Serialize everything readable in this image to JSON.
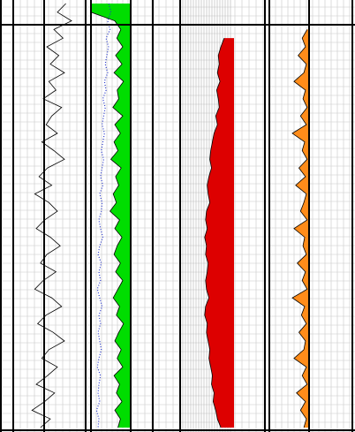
{
  "chart_data": {
    "type": "well-log",
    "tracks": [
      {
        "xlim": [
          0,
          100
        ],
        "series": [
          {
            "color": "#000000",
            "values": [
              72,
              60,
              80,
              55,
              68,
              45,
              62,
              50,
              70,
              48,
              58,
              40,
              66,
              52,
              44,
              60,
              38,
              55,
              70,
              46,
              34,
              52,
              28,
              48,
              60,
              42,
              30,
              50,
              64,
              45,
              36,
              58,
              40,
              28,
              52,
              66,
              44,
              32,
              54,
              70,
              48,
              38,
              60,
              46,
              30,
              56,
              42,
              24,
              50,
              36
            ]
          }
        ]
      },
      {
        "xlim": [
          0,
          100
        ],
        "series": [
          {
            "color": "#00dd00",
            "fill": "right",
            "values": [
              0,
              0,
              60,
              75,
              65,
              80,
              62,
              78,
              58,
              82,
              66,
              70,
              55,
              80,
              60,
              74,
              58,
              68,
              50,
              76,
              62,
              70,
              56,
              64,
              48,
              72,
              60,
              78,
              66,
              58,
              74,
              62,
              80,
              68,
              56,
              72,
              64,
              82,
              70,
              60,
              76,
              66,
              80,
              58,
              72,
              64,
              78,
              60,
              74,
              68
            ]
          },
          {
            "color": "#2233cc",
            "dotted": true,
            "values": [
              45,
              50,
              42,
              48,
              38,
              44,
              40,
              36,
              42,
              34,
              38,
              30,
              36,
              32,
              28,
              34,
              30,
              26,
              32,
              28,
              24,
              30,
              22,
              28,
              26,
              20,
              24,
              30,
              22,
              18,
              26,
              20,
              24,
              16,
              22,
              28,
              20,
              24,
              18,
              22,
              26,
              20,
              16,
              24,
              20,
              18,
              22,
              14,
              20,
              18
            ]
          }
        ]
      },
      {
        "xlim": [
          0,
          100
        ],
        "series": [
          {
            "color": "#dd0000",
            "fill": "right",
            "values": [
              null,
              null,
              null,
              null,
              52,
              48,
              45,
              46,
              44,
              47,
              43,
              45,
              46,
              42,
              44,
              40,
              38,
              36,
              35,
              37,
              34,
              32,
              33,
              35,
              31,
              30,
              32,
              29,
              31,
              30,
              33,
              32,
              30,
              31,
              34,
              30,
              29,
              32,
              31,
              33,
              35,
              34,
              36,
              38,
              37,
              40,
              39,
              42,
              44,
              48
            ]
          }
        ]
      },
      {
        "xlim": [
          0,
          100
        ],
        "series": [
          {
            "color": "#ff8c1a",
            "fill": "right",
            "values": [
              null,
              null,
              null,
              46,
              40,
              44,
              35,
              45,
              42,
              30,
              44,
              41,
              46,
              38,
              45,
              28,
              43,
              40,
              46,
              36,
              44,
              32,
              45,
              42,
              38,
              46,
              30,
              43,
              41,
              45,
              34,
              44,
              40,
              46,
              28,
              43,
              39,
              45,
              36,
              44,
              42,
              30,
              45,
              40,
              46,
              33,
              44,
              38,
              45,
              42
            ]
          }
        ]
      }
    ]
  }
}
